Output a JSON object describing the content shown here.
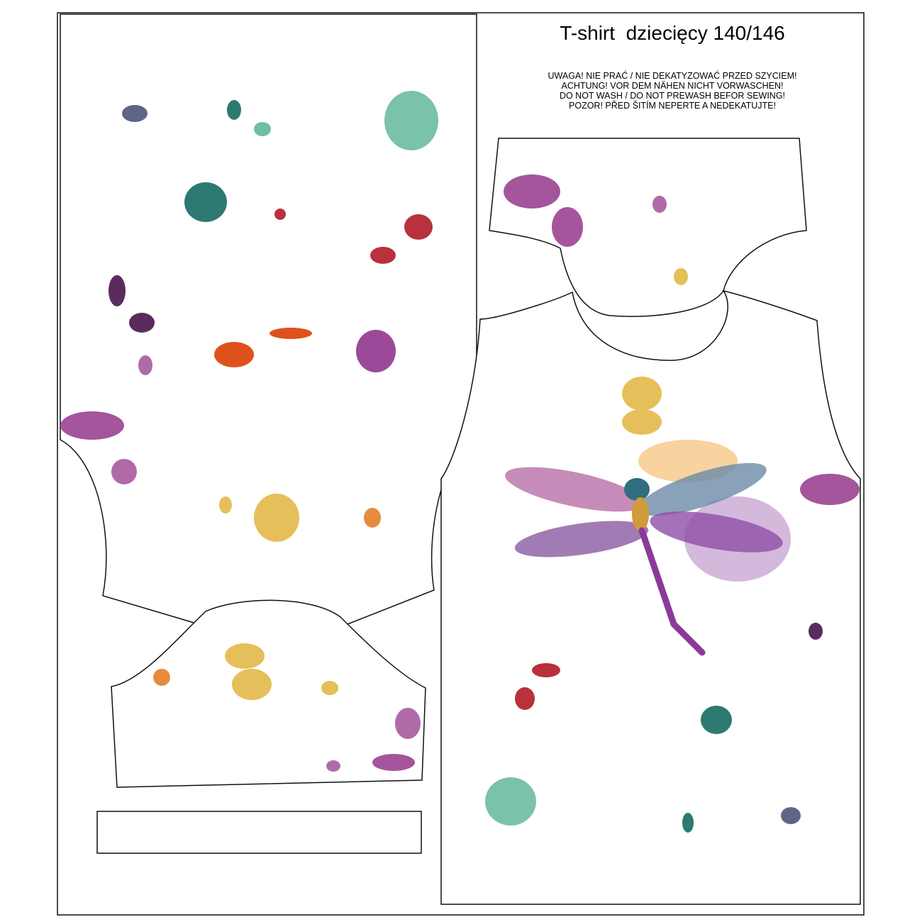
{
  "header": {
    "title": "T-shirt  dziecięcy 140/146"
  },
  "notice": {
    "lines": [
      "UWAGA! NIE PRAĆ / NIE DEKATYZOWAĆ PRZED SZYCIEM!",
      "ACHTUNG! VOR DEM NÄHEN NICHT VORWASCHEN!",
      "DO NOT WASH / DO NOT PREWASH BEFOR SEWING!",
      "POZOR! PŘED ŠITÍM NEPERTE A NEDEKATUJTE!"
    ]
  }
}
